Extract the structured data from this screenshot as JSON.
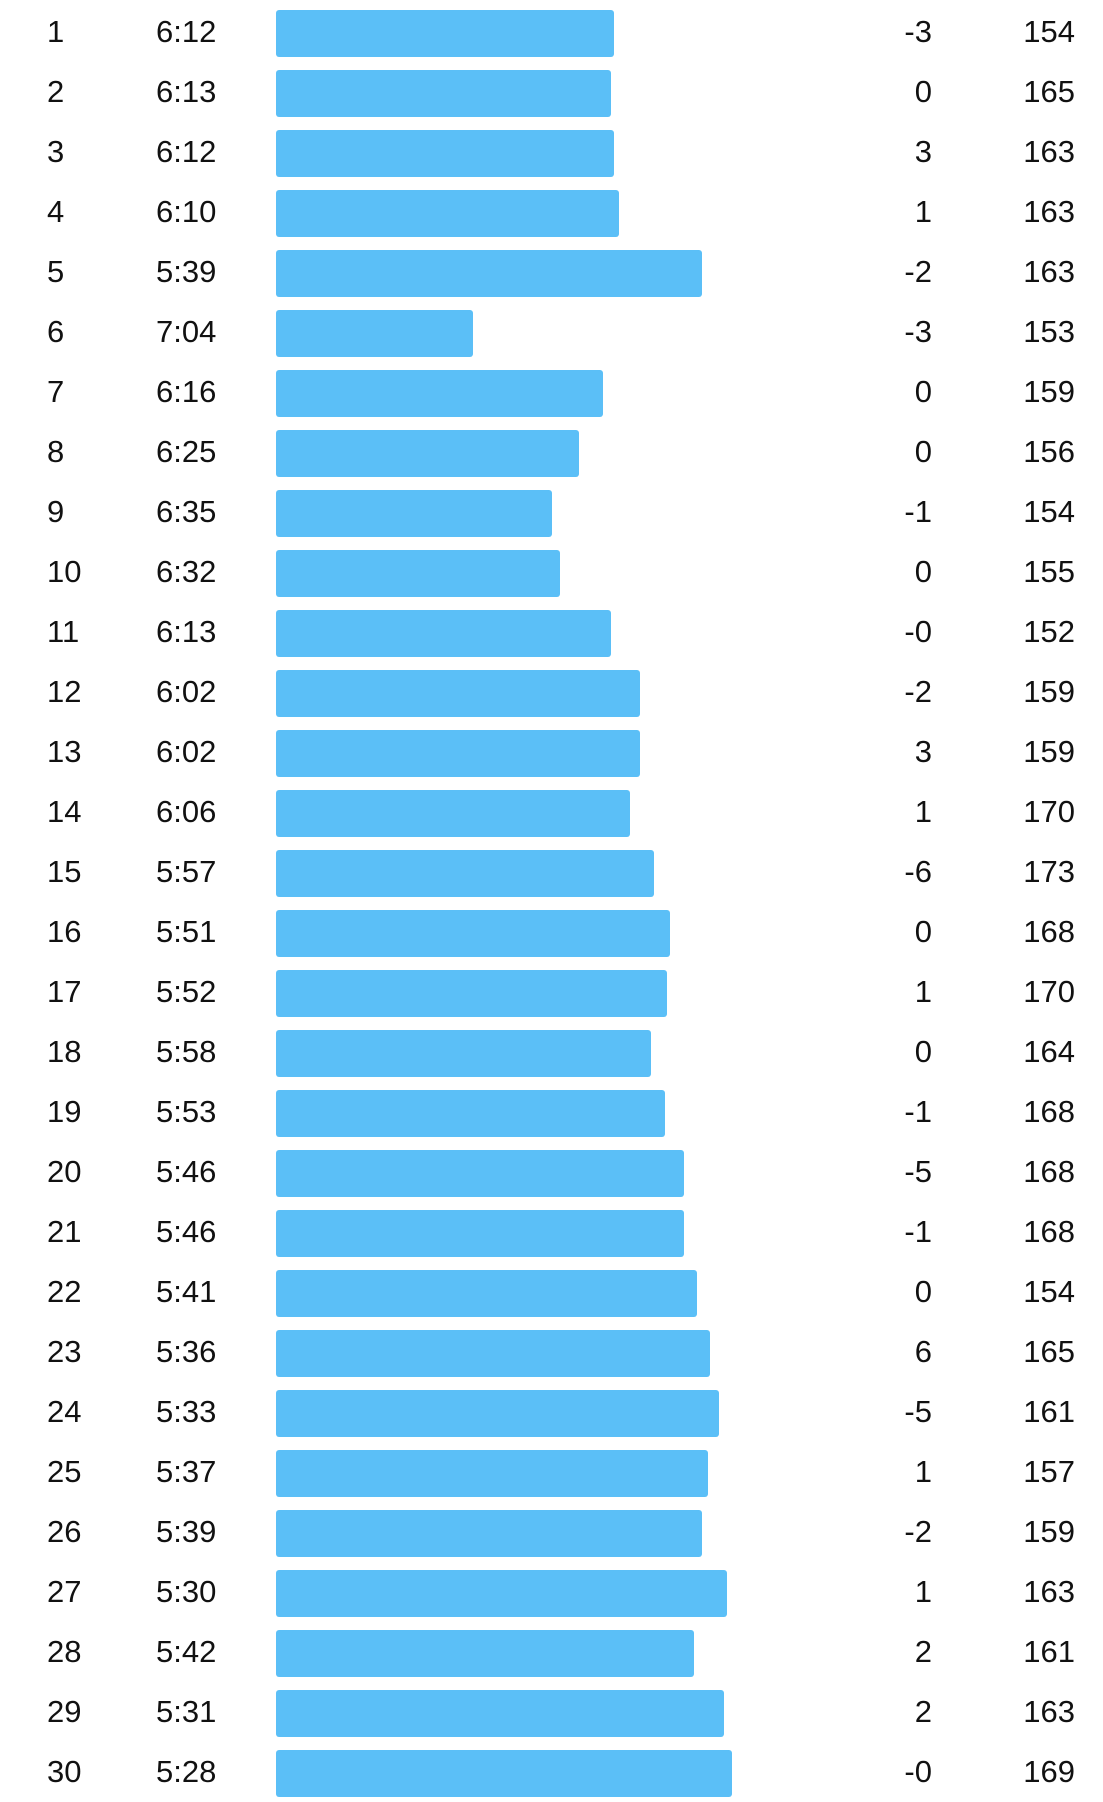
{
  "colors": {
    "bar": "#5bbff7",
    "text": "#111111",
    "background": "#ffffff"
  },
  "scale": {
    "slowest_pace_seconds": 455,
    "fastest_pace_seconds": 305,
    "min_bar_fraction": 0.22,
    "max_bar_fraction": 1.0
  },
  "splits": [
    {
      "index": "1",
      "pace": "6:12",
      "elevation": "-3",
      "heart_rate": "154"
    },
    {
      "index": "2",
      "pace": "6:13",
      "elevation": "0",
      "heart_rate": "165"
    },
    {
      "index": "3",
      "pace": "6:12",
      "elevation": "3",
      "heart_rate": "163"
    },
    {
      "index": "4",
      "pace": "6:10",
      "elevation": "1",
      "heart_rate": "163"
    },
    {
      "index": "5",
      "pace": "5:39",
      "elevation": "-2",
      "heart_rate": "163"
    },
    {
      "index": "6",
      "pace": "7:04",
      "elevation": "-3",
      "heart_rate": "153"
    },
    {
      "index": "7",
      "pace": "6:16",
      "elevation": "0",
      "heart_rate": "159"
    },
    {
      "index": "8",
      "pace": "6:25",
      "elevation": "0",
      "heart_rate": "156"
    },
    {
      "index": "9",
      "pace": "6:35",
      "elevation": "-1",
      "heart_rate": "154"
    },
    {
      "index": "10",
      "pace": "6:32",
      "elevation": "0",
      "heart_rate": "155"
    },
    {
      "index": "11",
      "pace": "6:13",
      "elevation": "-0",
      "heart_rate": "152"
    },
    {
      "index": "12",
      "pace": "6:02",
      "elevation": "-2",
      "heart_rate": "159"
    },
    {
      "index": "13",
      "pace": "6:02",
      "elevation": "3",
      "heart_rate": "159"
    },
    {
      "index": "14",
      "pace": "6:06",
      "elevation": "1",
      "heart_rate": "170"
    },
    {
      "index": "15",
      "pace": "5:57",
      "elevation": "-6",
      "heart_rate": "173"
    },
    {
      "index": "16",
      "pace": "5:51",
      "elevation": "0",
      "heart_rate": "168"
    },
    {
      "index": "17",
      "pace": "5:52",
      "elevation": "1",
      "heart_rate": "170"
    },
    {
      "index": "18",
      "pace": "5:58",
      "elevation": "0",
      "heart_rate": "164"
    },
    {
      "index": "19",
      "pace": "5:53",
      "elevation": "-1",
      "heart_rate": "168"
    },
    {
      "index": "20",
      "pace": "5:46",
      "elevation": "-5",
      "heart_rate": "168"
    },
    {
      "index": "21",
      "pace": "5:46",
      "elevation": "-1",
      "heart_rate": "168"
    },
    {
      "index": "22",
      "pace": "5:41",
      "elevation": "0",
      "heart_rate": "154"
    },
    {
      "index": "23",
      "pace": "5:36",
      "elevation": "6",
      "heart_rate": "165"
    },
    {
      "index": "24",
      "pace": "5:33",
      "elevation": "-5",
      "heart_rate": "161"
    },
    {
      "index": "25",
      "pace": "5:37",
      "elevation": "1",
      "heart_rate": "157"
    },
    {
      "index": "26",
      "pace": "5:39",
      "elevation": "-2",
      "heart_rate": "159"
    },
    {
      "index": "27",
      "pace": "5:30",
      "elevation": "1",
      "heart_rate": "163"
    },
    {
      "index": "28",
      "pace": "5:42",
      "elevation": "2",
      "heart_rate": "161"
    },
    {
      "index": "29",
      "pace": "5:31",
      "elevation": "2",
      "heart_rate": "163"
    },
    {
      "index": "30",
      "pace": "5:28",
      "elevation": "-0",
      "heart_rate": "169"
    }
  ]
}
